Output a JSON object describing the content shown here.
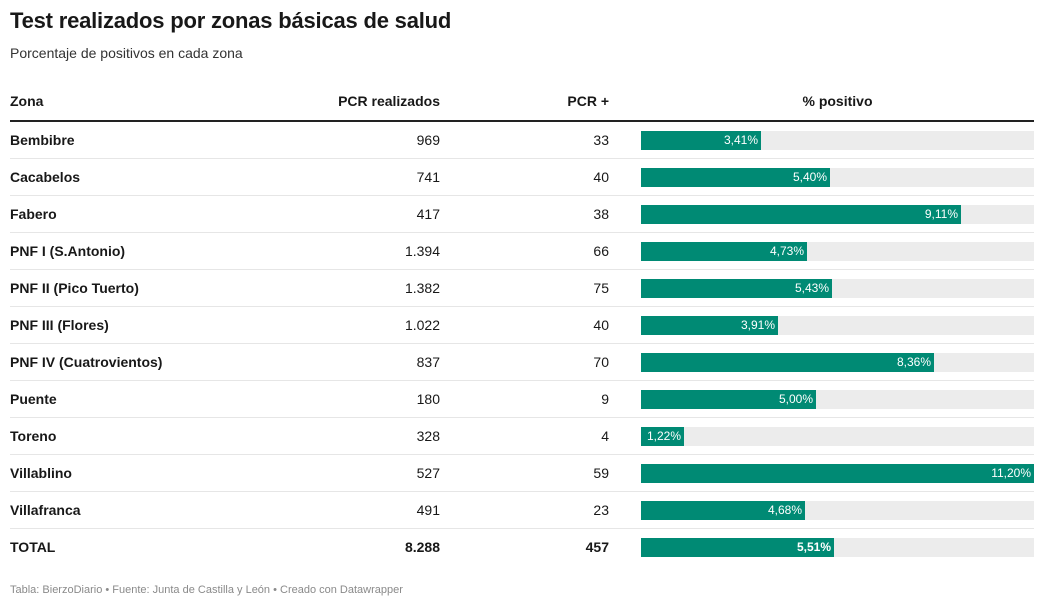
{
  "title": "Test realizados por zonas básicas de salud",
  "subtitle": "Porcentaje de positivos en cada zona",
  "footer": "Tabla: BierzoDiario • Fuente: Junta de Castilla y León • Creado con Datawrapper",
  "colors": {
    "bar": "#008a74",
    "track": "#ececec"
  },
  "chart_data": {
    "type": "table",
    "columns": [
      "Zona",
      "PCR realizados",
      "PCR +",
      "% positivo"
    ],
    "bar_max": 11.2,
    "rows": [
      {
        "zona": "Bembibre",
        "pcr": "969",
        "pos": "33",
        "pct": 3.41,
        "pct_label": "3,41%"
      },
      {
        "zona": "Cacabelos",
        "pcr": "741",
        "pos": "40",
        "pct": 5.4,
        "pct_label": "5,40%"
      },
      {
        "zona": "Fabero",
        "pcr": "417",
        "pos": "38",
        "pct": 9.11,
        "pct_label": "9,11%"
      },
      {
        "zona": "PNF I (S.Antonio)",
        "pcr": "1.394",
        "pos": "66",
        "pct": 4.73,
        "pct_label": "4,73%"
      },
      {
        "zona": "PNF II (Pico Tuerto)",
        "pcr": "1.382",
        "pos": "75",
        "pct": 5.43,
        "pct_label": "5,43%"
      },
      {
        "zona": "PNF III (Flores)",
        "pcr": "1.022",
        "pos": "40",
        "pct": 3.91,
        "pct_label": "3,91%"
      },
      {
        "zona": "PNF IV (Cuatrovientos)",
        "pcr": "837",
        "pos": "70",
        "pct": 8.36,
        "pct_label": "8,36%"
      },
      {
        "zona": "Puente",
        "pcr": "180",
        "pos": "9",
        "pct": 5.0,
        "pct_label": "5,00%"
      },
      {
        "zona": "Toreno",
        "pcr": "328",
        "pos": "4",
        "pct": 1.22,
        "pct_label": "1,22%"
      },
      {
        "zona": "Villablino",
        "pcr": "527",
        "pos": "59",
        "pct": 11.2,
        "pct_label": "11,20%"
      },
      {
        "zona": "Villafranca",
        "pcr": "491",
        "pos": "23",
        "pct": 4.68,
        "pct_label": "4,68%"
      },
      {
        "zona": "TOTAL",
        "pcr": "8.288",
        "pos": "457",
        "pct": 5.51,
        "pct_label": "5,51%",
        "total": true
      }
    ]
  }
}
